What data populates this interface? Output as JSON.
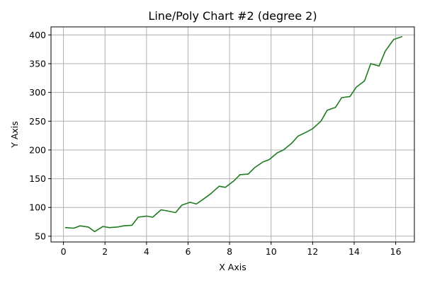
{
  "chart_data": {
    "type": "line",
    "title": "Line/Poly Chart #2 (degree 2)",
    "xlabel": "X Axis",
    "ylabel": "Y Axis",
    "xlim": [
      -0.6,
      16.9
    ],
    "ylim": [
      40,
      414
    ],
    "xticks": [
      0,
      2,
      4,
      6,
      8,
      10,
      12,
      14,
      16
    ],
    "yticks": [
      50,
      100,
      150,
      200,
      250,
      300,
      350,
      400
    ],
    "grid": true,
    "series": [
      {
        "color": "#1f7a1f",
        "x": [
          0.1,
          0.5,
          0.8,
          1.2,
          1.5,
          1.9,
          2.2,
          2.6,
          2.9,
          3.3,
          3.6,
          4.0,
          4.3,
          4.7,
          5.0,
          5.4,
          5.7,
          6.1,
          6.4,
          6.8,
          7.1,
          7.5,
          7.8,
          8.2,
          8.5,
          8.9,
          9.2,
          9.6,
          9.9,
          10.3,
          10.6,
          11.0,
          11.3,
          11.7,
          12.0,
          12.4,
          12.7,
          13.1,
          13.4,
          13.8,
          14.1,
          14.5,
          14.8,
          15.2,
          15.5,
          15.9,
          16.3
        ],
        "y": [
          65,
          64,
          68,
          66,
          58,
          67,
          65,
          66,
          68,
          69,
          83,
          85,
          83,
          96,
          94,
          91,
          104,
          109,
          106,
          116,
          124,
          137,
          135,
          146,
          157,
          158,
          169,
          179,
          183,
          195,
          200,
          212,
          224,
          231,
          237,
          250,
          269,
          274,
          291,
          293,
          309,
          320,
          350,
          346,
          372,
          392,
          397
        ]
      }
    ]
  }
}
